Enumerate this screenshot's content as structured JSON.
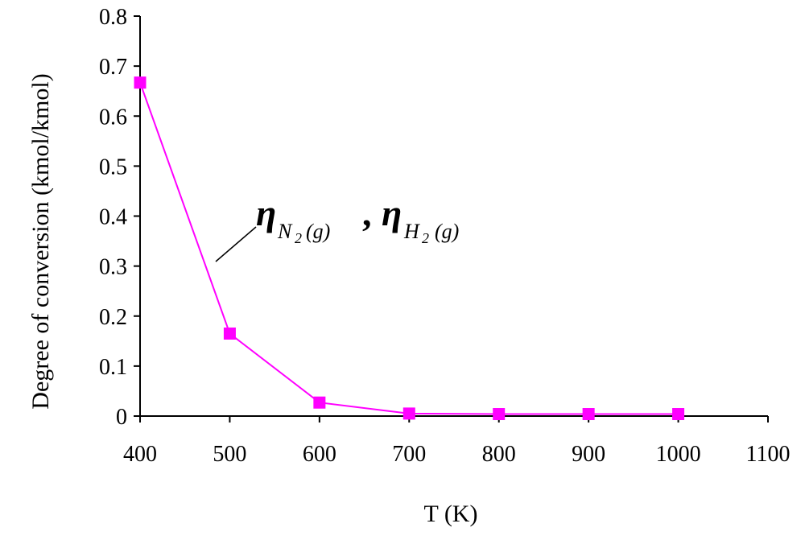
{
  "chart_data": {
    "type": "line",
    "xlabel": "T (K)",
    "ylabel": "Degree of conversion (kmol/kmol)",
    "xlim": [
      400,
      1100
    ],
    "ylim": [
      0,
      0.8
    ],
    "x_ticks": [
      "400",
      "500",
      "600",
      "700",
      "800",
      "900",
      "1000",
      "1100"
    ],
    "y_ticks": [
      "0",
      "0.1",
      "0.2",
      "0.3",
      "0.4",
      "0.5",
      "0.6",
      "0.7",
      "0.8"
    ],
    "grid": false,
    "legend": "none",
    "series": [
      {
        "color": "#ff00ff",
        "marker": "square",
        "points": [
          {
            "x": 400,
            "y": 0.667
          },
          {
            "x": 500,
            "y": 0.165
          },
          {
            "x": 600,
            "y": 0.027
          },
          {
            "x": 700,
            "y": 0.005
          },
          {
            "x": 800,
            "y": 0.004
          },
          {
            "x": 900,
            "y": 0.004
          },
          {
            "x": 1000,
            "y": 0.004
          }
        ]
      }
    ],
    "annotation": {
      "symbol_1": "η",
      "subscript_1": "N",
      "sub2_1": "2",
      "paren_1": "(g)",
      "separator": ",",
      "symbol_2": "η",
      "subscript_2": "H",
      "sub2_2": "2",
      "paren_2": "(g)"
    }
  }
}
